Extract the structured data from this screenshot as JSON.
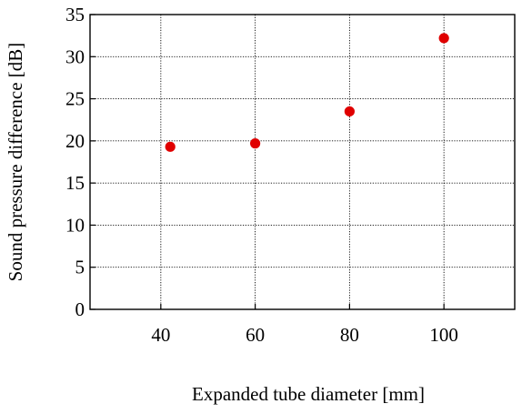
{
  "chart_data": {
    "type": "scatter",
    "title": "",
    "xlabel": "Expanded tube diameter [mm]",
    "ylabel": "Sound pressure difference [dB]",
    "xlim": [
      25,
      115
    ],
    "ylim": [
      0,
      35
    ],
    "x_ticks": [
      40,
      60,
      80,
      100
    ],
    "y_ticks": [
      0,
      5,
      10,
      15,
      20,
      25,
      30,
      35
    ],
    "grid": true,
    "marker_color": "#e00000",
    "series": [
      {
        "x": [
          42,
          60,
          80,
          100
        ],
        "y": [
          19.3,
          19.7,
          23.5,
          32.2
        ]
      }
    ]
  }
}
